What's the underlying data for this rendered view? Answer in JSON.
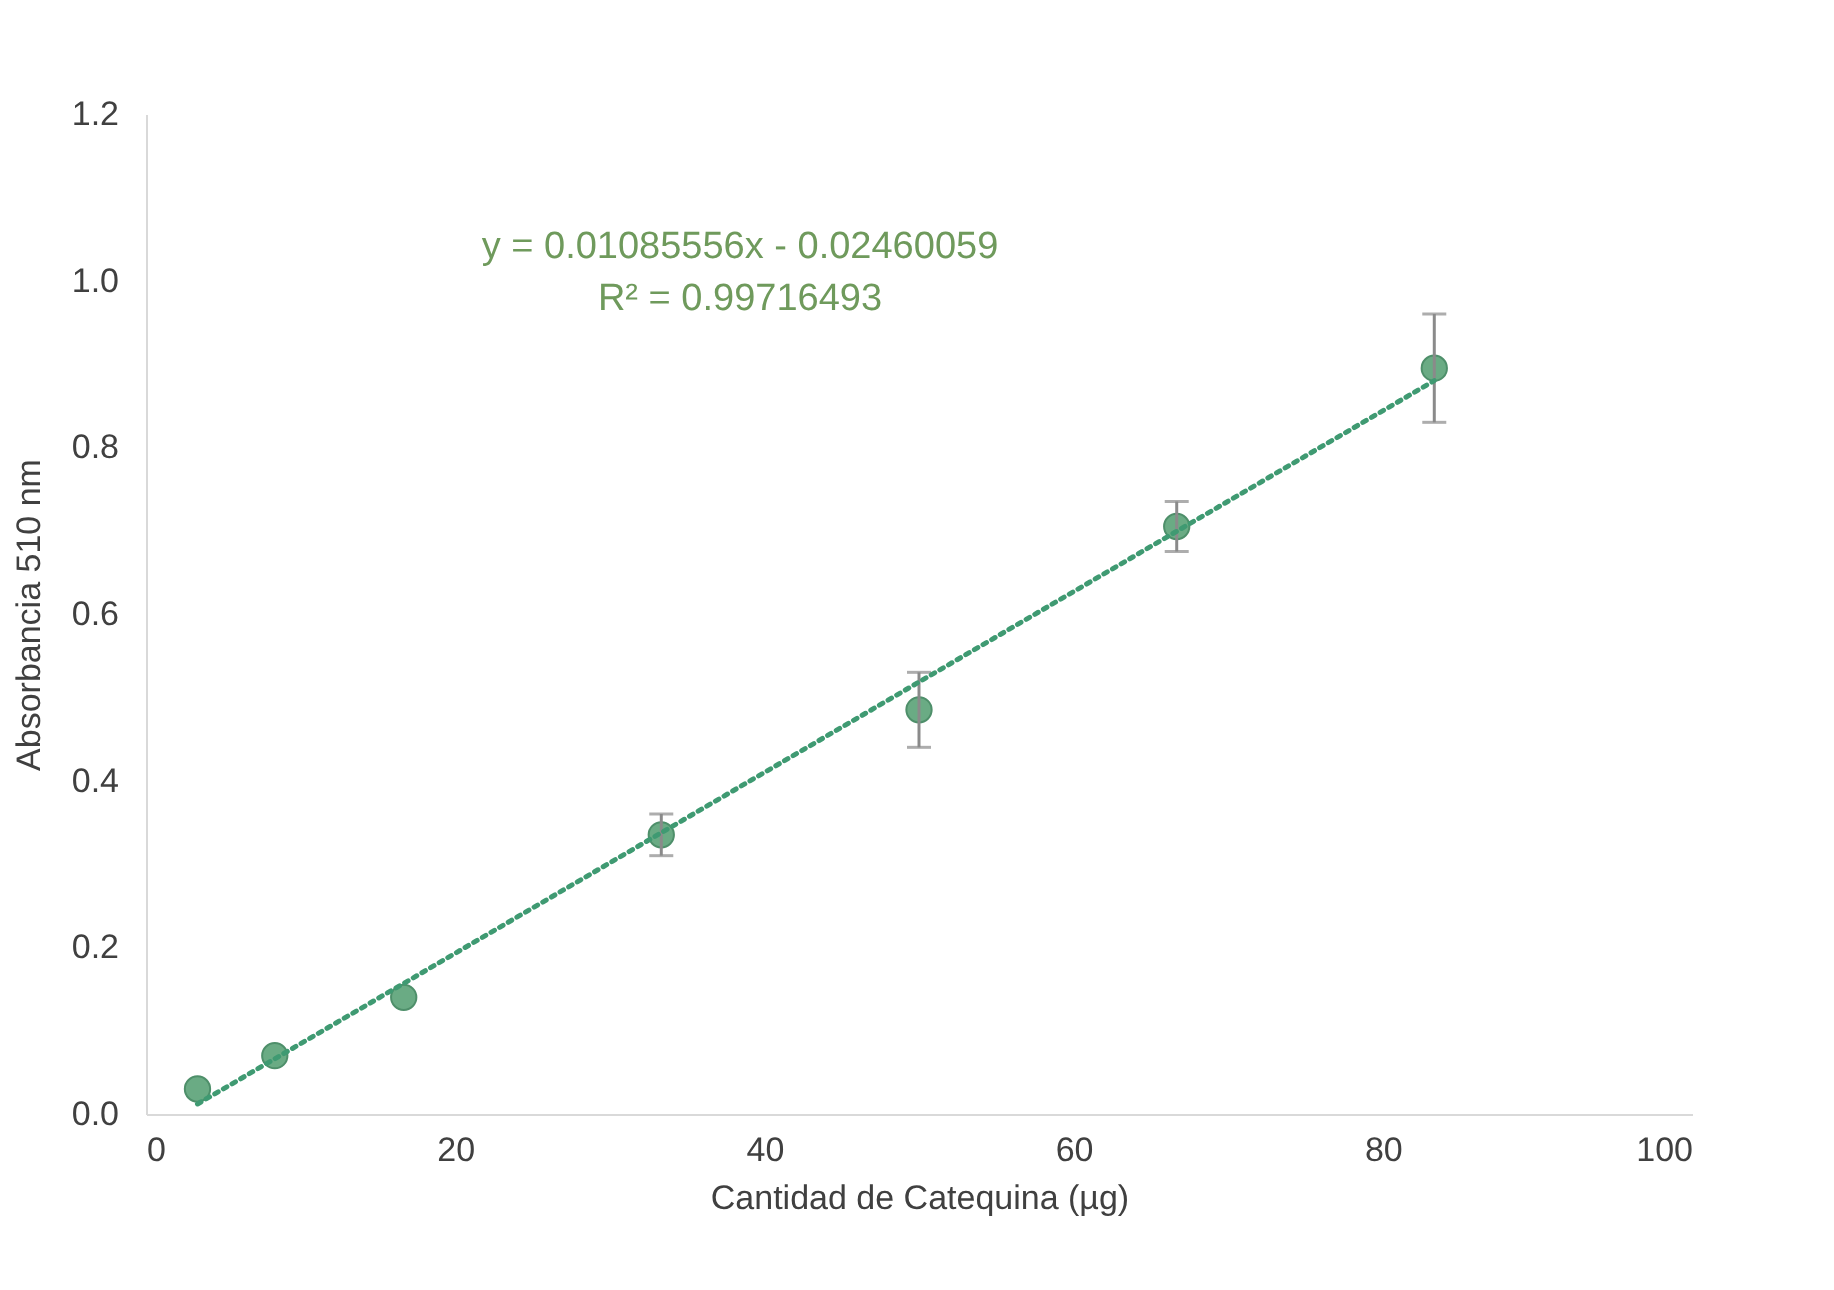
{
  "chart_data": {
    "type": "scatter",
    "xlabel": "Cantidad de Catequina (µg)",
    "ylabel": "Absorbancia 510 nm",
    "annotations": [
      "y = 0.01085556x - 0.02460059",
      "R² = 0.99716493"
    ],
    "series": [
      {
        "color": "#6aab84",
        "x": [
          3.33,
          8.33,
          16.67,
          33.33,
          50,
          66.67,
          83.33
        ],
        "values": [
          0.03,
          0.07,
          0.14,
          0.335,
          0.485,
          0.705,
          0.895
        ],
        "errors": [
          null,
          null,
          null,
          0.025,
          0.045,
          0.03,
          0.065
        ],
        "marker": "circle"
      },
      {
        "type": "line",
        "color": "#3f9a72",
        "x": [
          3.33,
          83.33
        ],
        "values": [
          0.012,
          0.88
        ],
        "line_style": "dotted",
        "marker": "none"
      }
    ],
    "xlim": [
      0,
      100
    ],
    "xticks": [
      0,
      20,
      40,
      60,
      80,
      100
    ],
    "ylim": [
      0,
      1.2
    ],
    "yticks": [
      {
        "value": 0,
        "label": "0.0"
      },
      0.2,
      0.4,
      0.6,
      0.8,
      {
        "value": 1,
        "label": "1.0"
      },
      1.2
    ],
    "grid": false
  }
}
